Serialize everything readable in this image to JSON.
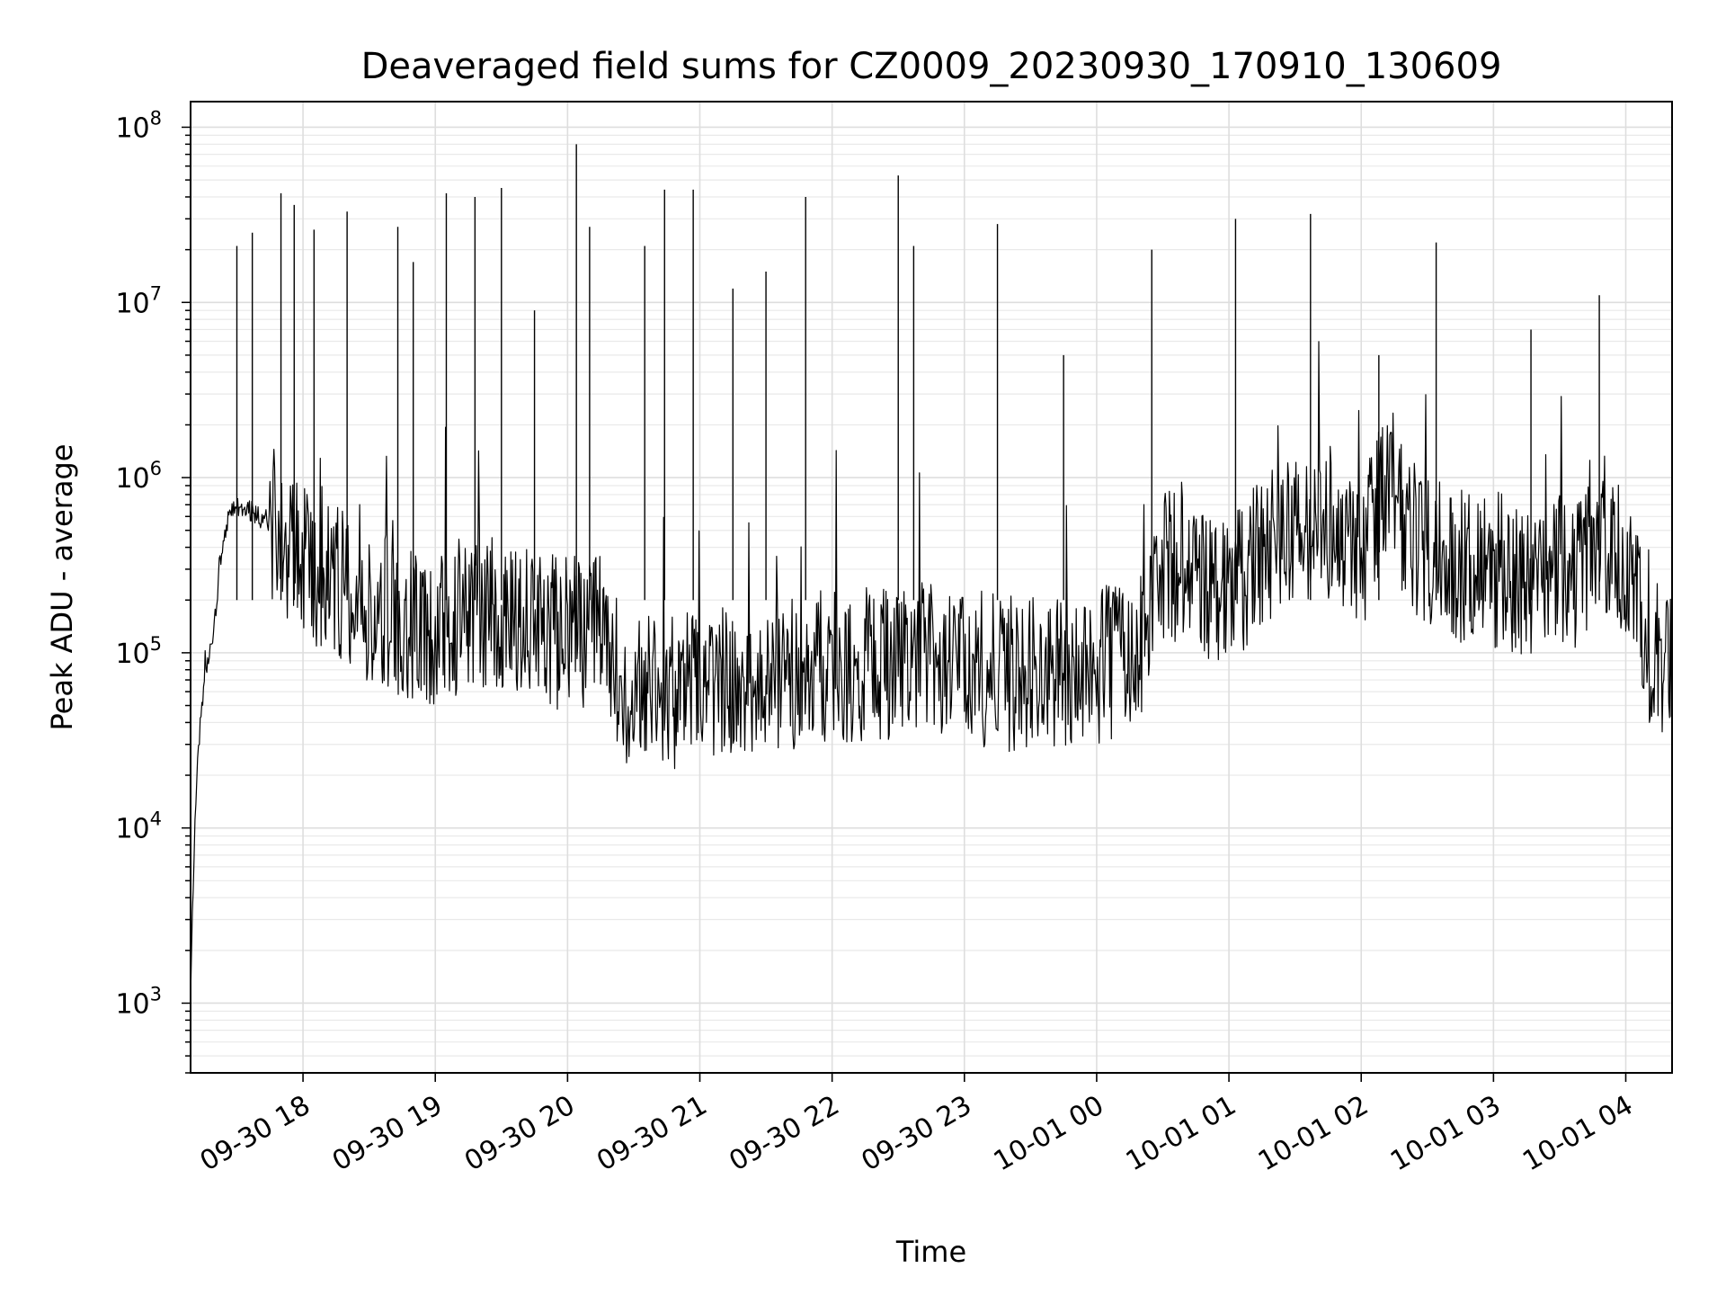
{
  "chart_data": {
    "type": "line",
    "title": "Deaveraged field sums for CZ0009_20230930_170910_130609",
    "xlabel": "Time",
    "ylabel": "Peak ADU - average",
    "yscale": "log",
    "ylim": [
      400,
      140000000
    ],
    "xlim": [
      "2023-09-30 17:09",
      "2023-10-01 04:21"
    ],
    "grid": true,
    "x_ticks": [
      {
        "value": "2023-09-30 18:00",
        "label": "09-30 18"
      },
      {
        "value": "2023-09-30 19:00",
        "label": "09-30 19"
      },
      {
        "value": "2023-09-30 20:00",
        "label": "09-30 20"
      },
      {
        "value": "2023-09-30 21:00",
        "label": "09-30 21"
      },
      {
        "value": "2023-09-30 22:00",
        "label": "09-30 22"
      },
      {
        "value": "2023-09-30 23:00",
        "label": "09-30 23"
      },
      {
        "value": "2023-10-01 00:00",
        "label": "10-01 00"
      },
      {
        "value": "2023-10-01 01:00",
        "label": "10-01 01"
      },
      {
        "value": "2023-10-01 02:00",
        "label": "10-01 02"
      },
      {
        "value": "2023-10-01 03:00",
        "label": "10-01 03"
      },
      {
        "value": "2023-10-01 04:00",
        "label": "10-01 04"
      }
    ],
    "y_ticks": [
      {
        "value": 1000,
        "base": "10",
        "exp": "3"
      },
      {
        "value": 10000,
        "base": "10",
        "exp": "4"
      },
      {
        "value": 100000,
        "base": "10",
        "exp": "5"
      },
      {
        "value": 1000000,
        "base": "10",
        "exp": "6"
      },
      {
        "value": 10000000,
        "base": "10",
        "exp": "7"
      },
      {
        "value": 100000000,
        "base": "10",
        "exp": "8"
      }
    ],
    "series": [
      {
        "color": "#000000",
        "x": [
          "2023-09-30 17:09",
          "2023-09-30 17:11",
          "2023-09-30 17:13",
          "2023-09-30 17:16",
          "2023-09-30 17:19",
          "2023-09-30 17:22",
          "2023-09-30 17:26",
          "2023-09-30 17:30",
          "2023-09-30 17:35",
          "2023-09-30 17:40",
          "2023-09-30 17:45",
          "2023-09-30 17:50",
          "2023-09-30 17:55",
          "2023-09-30 18:00",
          "2023-09-30 18:05",
          "2023-09-30 18:10",
          "2023-09-30 18:15",
          "2023-09-30 18:20",
          "2023-09-30 18:25",
          "2023-09-30 18:30",
          "2023-09-30 18:35",
          "2023-09-30 18:40",
          "2023-09-30 18:45",
          "2023-09-30 18:50",
          "2023-09-30 18:55",
          "2023-09-30 19:00",
          "2023-09-30 19:05",
          "2023-09-30 19:10",
          "2023-09-30 19:15",
          "2023-09-30 19:20",
          "2023-09-30 19:25",
          "2023-09-30 19:30",
          "2023-09-30 19:35",
          "2023-09-30 19:40",
          "2023-09-30 19:45",
          "2023-09-30 19:50",
          "2023-09-30 19:55",
          "2023-09-30 20:00",
          "2023-09-30 20:05",
          "2023-09-30 20:10",
          "2023-09-30 20:15",
          "2023-09-30 20:20",
          "2023-09-30 20:25",
          "2023-09-30 20:30",
          "2023-09-30 20:35",
          "2023-09-30 20:40",
          "2023-09-30 20:45",
          "2023-09-30 20:50",
          "2023-09-30 20:55",
          "2023-09-30 21:00",
          "2023-09-30 21:10",
          "2023-09-30 21:20",
          "2023-09-30 21:30",
          "2023-09-30 21:40",
          "2023-09-30 21:50",
          "2023-09-30 22:00",
          "2023-09-30 22:10",
          "2023-09-30 22:20",
          "2023-09-30 22:30",
          "2023-09-30 22:40",
          "2023-09-30 22:50",
          "2023-09-30 23:00",
          "2023-09-30 23:10",
          "2023-09-30 23:20",
          "2023-09-30 23:30",
          "2023-09-30 23:40",
          "2023-09-30 23:50",
          "2023-10-01 00:00",
          "2023-10-01 00:10",
          "2023-10-01 00:20",
          "2023-10-01 00:25",
          "2023-10-01 00:30",
          "2023-10-01 00:40",
          "2023-10-01 00:50",
          "2023-10-01 01:00",
          "2023-10-01 01:10",
          "2023-10-01 01:20",
          "2023-10-01 01:30",
          "2023-10-01 01:40",
          "2023-10-01 01:50",
          "2023-10-01 02:00",
          "2023-10-01 02:05",
          "2023-10-01 02:10",
          "2023-10-01 02:20",
          "2023-10-01 02:30",
          "2023-10-01 02:40",
          "2023-10-01 02:50",
          "2023-10-01 03:00",
          "2023-10-01 03:10",
          "2023-10-01 03:20",
          "2023-10-01 03:30",
          "2023-10-01 03:40",
          "2023-10-01 03:50",
          "2023-10-01 04:00",
          "2023-10-01 04:05",
          "2023-10-01 04:10",
          "2023-10-01 04:15",
          "2023-10-01 04:21"
        ],
        "y": [
          1200,
          11000,
          35000,
          80000,
          110000,
          300000,
          600000,
          700000,
          650000,
          600000,
          550000,
          500000,
          400000,
          350000,
          300000,
          280000,
          250000,
          220000,
          200000,
          180000,
          170000,
          160000,
          150000,
          150000,
          140000,
          140000,
          150000,
          160000,
          170000,
          180000,
          170000,
          160000,
          150000,
          140000,
          140000,
          130000,
          130000,
          130000,
          130000,
          130000,
          130000,
          120000,
          65000,
          60000,
          60000,
          60000,
          62000,
          60000,
          62000,
          63000,
          65000,
          68000,
          70000,
          75000,
          80000,
          85000,
          85000,
          85000,
          90000,
          90000,
          90000,
          85000,
          80000,
          75000,
          75000,
          75000,
          80000,
          85000,
          90000,
          100000,
          250000,
          300000,
          300000,
          250000,
          250000,
          300000,
          400000,
          500000,
          600000,
          500000,
          400000,
          500000,
          1000000,
          500000,
          400000,
          350000,
          300000,
          300000,
          280000,
          260000,
          280000,
          300000,
          500000,
          300000,
          200000,
          90000,
          100000,
          70000
        ],
        "spikes": [
          {
            "x": "2023-09-30 17:30",
            "y": 21000000
          },
          {
            "x": "2023-09-30 17:37",
            "y": 25000000
          },
          {
            "x": "2023-09-30 17:50",
            "y": 42000000
          },
          {
            "x": "2023-09-30 17:56",
            "y": 36000000
          },
          {
            "x": "2023-09-30 18:05",
            "y": 26000000
          },
          {
            "x": "2023-09-30 18:20",
            "y": 33000000
          },
          {
            "x": "2023-09-30 18:43",
            "y": 27000000
          },
          {
            "x": "2023-09-30 18:50",
            "y": 17000000
          },
          {
            "x": "2023-09-30 19:05",
            "y": 42000000
          },
          {
            "x": "2023-09-30 19:18",
            "y": 40000000
          },
          {
            "x": "2023-09-30 19:30",
            "y": 45000000
          },
          {
            "x": "2023-09-30 19:45",
            "y": 9000000
          },
          {
            "x": "2023-09-30 20:04",
            "y": 80000000
          },
          {
            "x": "2023-09-30 20:10",
            "y": 27000000
          },
          {
            "x": "2023-09-30 20:35",
            "y": 21000000
          },
          {
            "x": "2023-09-30 20:44",
            "y": 44000000
          },
          {
            "x": "2023-09-30 20:57",
            "y": 44000000
          },
          {
            "x": "2023-09-30 21:15",
            "y": 12000000
          },
          {
            "x": "2023-09-30 21:30",
            "y": 15000000
          },
          {
            "x": "2023-09-30 21:48",
            "y": 40000000
          },
          {
            "x": "2023-09-30 22:30",
            "y": 53000000
          },
          {
            "x": "2023-09-30 22:37",
            "y": 21000000
          },
          {
            "x": "2023-09-30 23:15",
            "y": 28000000
          },
          {
            "x": "2023-09-30 23:45",
            "y": 5000000
          },
          {
            "x": "2023-10-01 00:25",
            "y": 20000000
          },
          {
            "x": "2023-10-01 01:03",
            "y": 30000000
          },
          {
            "x": "2023-10-01 01:37",
            "y": 32000000
          },
          {
            "x": "2023-10-01 02:08",
            "y": 5000000
          },
          {
            "x": "2023-10-01 02:34",
            "y": 22000000
          },
          {
            "x": "2023-10-01 03:17",
            "y": 7000000
          },
          {
            "x": "2023-10-01 03:48",
            "y": 11000000
          }
        ]
      }
    ]
  }
}
